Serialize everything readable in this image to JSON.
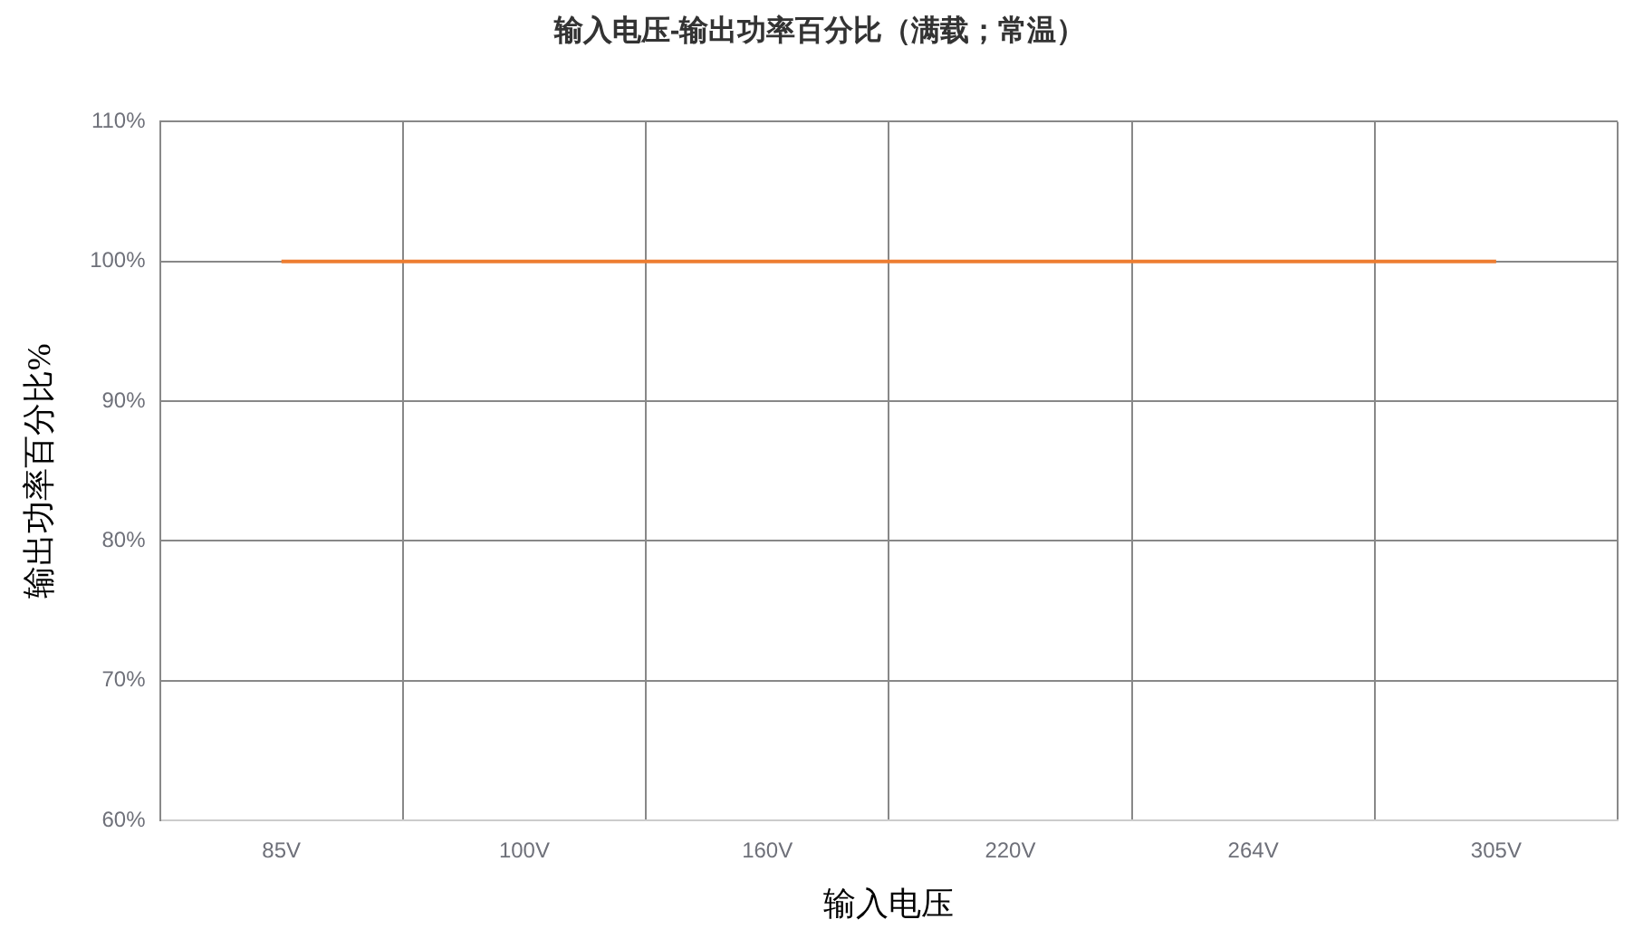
{
  "chart_data": {
    "type": "line",
    "title": "输入电压-输出功率百分比（满载；常温）",
    "xlabel": "输入电压",
    "ylabel": "输出功率百分比%",
    "categories": [
      "85V",
      "100V",
      "160V",
      "220V",
      "264V",
      "305V"
    ],
    "series": [
      {
        "color": "#ed7d31",
        "values": [
          100,
          100,
          100,
          100,
          100,
          100
        ]
      }
    ],
    "ylim": [
      60,
      110
    ],
    "yticks": [
      {
        "value": 60,
        "label": "60%"
      },
      {
        "value": 70,
        "label": "70%"
      },
      {
        "value": 80,
        "label": "80%"
      },
      {
        "value": 90,
        "label": "90%"
      },
      {
        "value": 100,
        "label": "100%"
      },
      {
        "value": 110,
        "label": "110%"
      }
    ],
    "grid": true,
    "marker": "none",
    "line_style": "solid"
  }
}
